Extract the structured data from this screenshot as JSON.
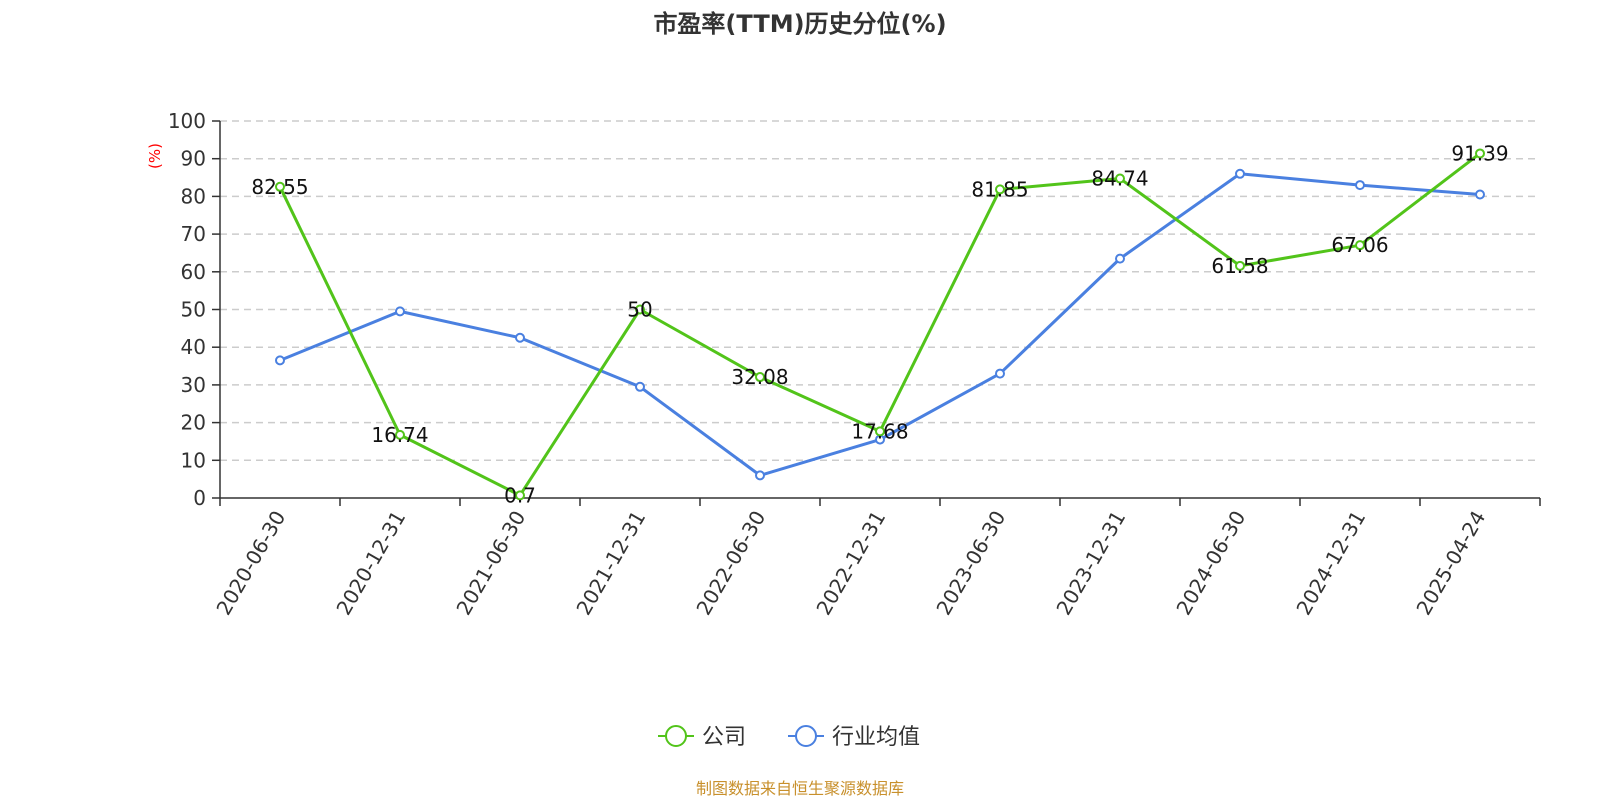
{
  "chart_data": {
    "type": "line",
    "title": "市盈率(TTM)历史分位(%)",
    "ylabel": "(%)",
    "xlabel": "",
    "ylim": [
      0,
      100
    ],
    "yticks": [
      0,
      10,
      20,
      30,
      40,
      50,
      60,
      70,
      80,
      90,
      100
    ],
    "grid": true,
    "legend_position": "bottom-center",
    "categories": [
      "2020-06-30",
      "2020-12-31",
      "2021-06-30",
      "2021-12-31",
      "2022-06-30",
      "2022-12-31",
      "2023-06-30",
      "2023-12-31",
      "2024-06-30",
      "2024-12-31",
      "2025-04-24"
    ],
    "series": [
      {
        "name": "公司",
        "color": "#52c41a",
        "values": [
          82.55,
          16.74,
          0.7,
          50,
          32.08,
          17.68,
          81.85,
          84.74,
          61.58,
          67.06,
          91.39
        ],
        "labels": [
          "82.55",
          "16.74",
          "0.7",
          "50",
          "32.08",
          "17.68",
          "81.85",
          "84.74",
          "61.58",
          "67.06",
          "91.39"
        ]
      },
      {
        "name": "行业均值",
        "color": "#4a80e0",
        "values": [
          36.5,
          49.5,
          42.5,
          29.5,
          6,
          15.5,
          33,
          63.5,
          86,
          83,
          80.5
        ]
      }
    ],
    "source": "制图数据来自恒生聚源数据库"
  }
}
